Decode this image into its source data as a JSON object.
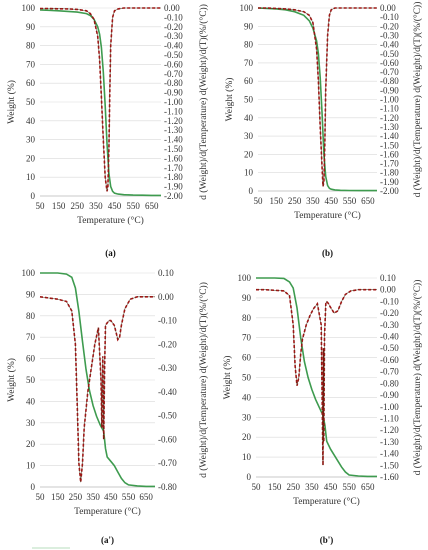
{
  "colors": {
    "weight": "#3e9b4f",
    "deriv": "#a31515",
    "deriv_dark": "#3b2a10",
    "faint": "#cfe9d4",
    "axis": "#bfbfbf"
  },
  "chart_data": [
    {
      "type": "line",
      "panel_label": "(a)",
      "xlabel": "Temperature (°C)",
      "ylabel": "Weight (%)",
      "y2label": "d (Weight)/d(Temperature) d(Weight)/d(T)(%/(°C))",
      "xticks": [
        "50",
        "150",
        "250",
        "350",
        "450",
        "550",
        "650"
      ],
      "yticks": [
        "0",
        "10",
        "20",
        "30",
        "40",
        "50",
        "60",
        "70",
        "80",
        "90",
        "100"
      ],
      "y2ticks": [
        "0.00",
        "-0.10",
        "-0.20",
        "-0.30",
        "-0.40",
        "-0.50",
        "-0.60",
        "-0.70",
        "-0.80",
        "-0.90",
        "-1.00",
        "-1.10",
        "-1.20",
        "-1.30",
        "-1.40",
        "-1.50",
        "-1.60",
        "-1.70",
        "-1.80",
        "-1.90",
        "-2.00"
      ],
      "xlim": [
        50,
        700
      ],
      "ylim": [
        0,
        100
      ],
      "y2lim": [
        -2.0,
        0.0
      ],
      "series": [
        {
          "axis": "left",
          "x": [
            50,
            100,
            150,
            200,
            250,
            300,
            320,
            340,
            360,
            370,
            380,
            390,
            400,
            410,
            420,
            430,
            440,
            450,
            470,
            500,
            550,
            600,
            650,
            700
          ],
          "y": [
            99,
            98.8,
            98.5,
            98.2,
            97.8,
            97,
            96,
            94,
            90,
            86,
            79,
            66,
            48,
            28,
            12,
            5,
            2.5,
            1.5,
            1,
            0.7,
            0.5,
            0.4,
            0.3,
            0.3
          ]
        },
        {
          "axis": "right",
          "x": [
            50,
            100,
            150,
            200,
            250,
            300,
            320,
            340,
            360,
            370,
            380,
            390,
            400,
            410,
            415,
            420,
            425,
            430,
            440,
            450,
            470,
            500,
            550,
            600,
            650,
            700
          ],
          "y": [
            -0.005,
            -0.005,
            -0.008,
            -0.01,
            -0.015,
            -0.03,
            -0.06,
            -0.12,
            -0.3,
            -0.55,
            -0.95,
            -1.4,
            -1.8,
            -1.95,
            -1.9,
            -1.5,
            -0.9,
            -0.4,
            -0.1,
            -0.03,
            -0.01,
            0,
            0,
            0,
            0,
            0
          ]
        }
      ]
    },
    {
      "type": "line",
      "panel_label": "(b)",
      "xlabel": "Temperature (°C)",
      "ylabel": "Weight (%)",
      "y2label": "d (Weight)/d(Temperature) d(Weight)/d(T)(%/(°C))",
      "xticks": [
        "50",
        "150",
        "250",
        "350",
        "450",
        "550",
        "650"
      ],
      "yticks": [
        "0",
        "10",
        "20",
        "30",
        "40",
        "50",
        "60",
        "70",
        "80",
        "90",
        "100"
      ],
      "y2ticks": [
        "0.00",
        "-0.10",
        "-0.20",
        "-0.30",
        "-0.40",
        "-0.50",
        "-0.60",
        "-0.70",
        "-0.80",
        "-0.90",
        "-1.00",
        "-1.10",
        "-1.20",
        "-1.30",
        "-1.40",
        "-1.50",
        "-1.60",
        "-1.70",
        "-1.80",
        "-1.90",
        "-2.00"
      ],
      "xlim": [
        50,
        700
      ],
      "ylim": [
        0,
        100
      ],
      "y2lim": [
        -2.0,
        0.0
      ],
      "series": [
        {
          "axis": "left",
          "x": [
            50,
            100,
            150,
            200,
            250,
            300,
            330,
            350,
            370,
            380,
            390,
            400,
            410,
            420,
            430,
            440,
            450,
            470,
            500,
            550,
            600,
            650,
            700
          ],
          "y": [
            100,
            99.8,
            99.5,
            99,
            98,
            96,
            93,
            89,
            82,
            75,
            62,
            42,
            20,
            8,
            3,
            1.5,
            1,
            0.6,
            0.4,
            0.3,
            0.2,
            0.2,
            0.2
          ]
        },
        {
          "axis": "right",
          "x": [
            50,
            100,
            150,
            200,
            250,
            300,
            330,
            350,
            370,
            380,
            390,
            400,
            405,
            410,
            415,
            420,
            430,
            440,
            450,
            470,
            500,
            550,
            600,
            650,
            700
          ],
          "y": [
            0,
            0,
            -0.005,
            -0.01,
            -0.02,
            -0.04,
            -0.08,
            -0.16,
            -0.45,
            -0.8,
            -1.3,
            -1.75,
            -1.95,
            -1.9,
            -1.5,
            -0.9,
            -0.3,
            -0.08,
            -0.02,
            0,
            0,
            0,
            0,
            0,
            0
          ]
        }
      ]
    },
    {
      "type": "line",
      "panel_label": "(a')",
      "xlabel": "Temperature (°C)",
      "ylabel": "Weight (%)",
      "y2label": "d (Weight)/d(Temperature) d(Weight)/d(T)(%/(°C))",
      "xticks": [
        "50",
        "150",
        "250",
        "350",
        "450",
        "550",
        "650"
      ],
      "yticks": [
        "0",
        "10",
        "20",
        "30",
        "40",
        "50",
        "60",
        "70",
        "80",
        "90",
        "100"
      ],
      "y2ticks": [
        "0.10",
        "0.00",
        "-0.10",
        "-0.20",
        "-0.30",
        "-0.40",
        "-0.50",
        "-0.60",
        "-0.70",
        "-0.80"
      ],
      "xlim": [
        50,
        700
      ],
      "ylim": [
        0,
        100
      ],
      "y2lim": [
        -0.8,
        0.1
      ],
      "series": [
        {
          "axis": "left",
          "x": [
            50,
            100,
            150,
            200,
            230,
            250,
            270,
            290,
            310,
            330,
            350,
            370,
            390,
            410,
            420,
            430,
            450,
            470,
            490,
            510,
            530,
            550,
            600,
            650,
            700
          ],
          "y": [
            100,
            100,
            100,
            99.5,
            98,
            93,
            82,
            68,
            55,
            45,
            38,
            33,
            29,
            26,
            18,
            14,
            12,
            10,
            7,
            4,
            2,
            1,
            0.5,
            0.3,
            0.3
          ]
        },
        {
          "axis": "right",
          "x": [
            50,
            100,
            150,
            200,
            230,
            250,
            260,
            270,
            280,
            290,
            300,
            320,
            340,
            360,
            380,
            395,
            400,
            405,
            410,
            415,
            420,
            430,
            440,
            450,
            470,
            480,
            490,
            500,
            510,
            530,
            560,
            600,
            650,
            700
          ],
          "y": [
            0,
            -0.005,
            -0.01,
            -0.02,
            -0.06,
            -0.2,
            -0.45,
            -0.7,
            -0.78,
            -0.7,
            -0.55,
            -0.4,
            -0.3,
            -0.2,
            -0.13,
            -0.35,
            -0.55,
            -0.25,
            -0.6,
            -0.3,
            -0.12,
            -0.11,
            -0.1,
            -0.1,
            -0.12,
            -0.15,
            -0.18,
            -0.17,
            -0.12,
            -0.05,
            -0.01,
            0,
            0,
            0
          ]
        }
      ]
    },
    {
      "type": "line",
      "panel_label": "(b')",
      "xlabel": "Temperature (°C)",
      "ylabel": "Weight (%)",
      "y2label": "d (Weight)/d(Temperature) d(Weight)/d(T)(%/(°C))",
      "xticks": [
        "50",
        "150",
        "250",
        "350",
        "450",
        "550",
        "650"
      ],
      "yticks": [
        "0",
        "10",
        "20",
        "30",
        "40",
        "50",
        "60",
        "70",
        "80",
        "90",
        "100"
      ],
      "y2ticks": [
        "0.10",
        "0.00",
        "-0.10",
        "-0.20",
        "-0.30",
        "-0.40",
        "-0.50",
        "-0.60",
        "-0.70",
        "-0.80",
        "-0.90",
        "-1.00",
        "-1.10",
        "-1.20",
        "-1.30",
        "-1.40",
        "-1.50",
        "-1.60"
      ],
      "xlim": [
        50,
        700
      ],
      "ylim": [
        0,
        100
      ],
      "y2lim": [
        -1.6,
        0.1
      ],
      "series": [
        {
          "axis": "left",
          "x": [
            50,
            100,
            150,
            200,
            230,
            250,
            270,
            290,
            310,
            330,
            350,
            370,
            390,
            410,
            420,
            430,
            450,
            470,
            490,
            510,
            530,
            550,
            600,
            650,
            700
          ],
          "y": [
            100,
            100,
            100,
            99.8,
            98,
            95,
            85,
            70,
            58,
            50,
            44,
            39,
            35,
            31,
            26,
            18,
            14,
            11,
            8,
            5,
            2.5,
            1,
            0.5,
            0.3,
            0.3
          ]
        },
        {
          "axis": "right",
          "x": [
            50,
            100,
            150,
            200,
            230,
            250,
            260,
            270,
            280,
            290,
            300,
            320,
            340,
            360,
            380,
            400,
            410,
            412,
            414,
            418,
            425,
            430,
            440,
            450,
            470,
            490,
            510,
            530,
            560,
            600,
            650,
            700
          ],
          "y": [
            0,
            0,
            -0.005,
            -0.01,
            -0.05,
            -0.3,
            -0.65,
            -0.82,
            -0.75,
            -0.55,
            -0.42,
            -0.3,
            -0.22,
            -0.16,
            -0.12,
            -0.3,
            -1.5,
            -0.5,
            -1.3,
            -0.4,
            -0.12,
            -0.1,
            -0.12,
            -0.15,
            -0.2,
            -0.18,
            -0.1,
            -0.04,
            -0.01,
            0,
            0,
            0
          ]
        }
      ]
    }
  ]
}
